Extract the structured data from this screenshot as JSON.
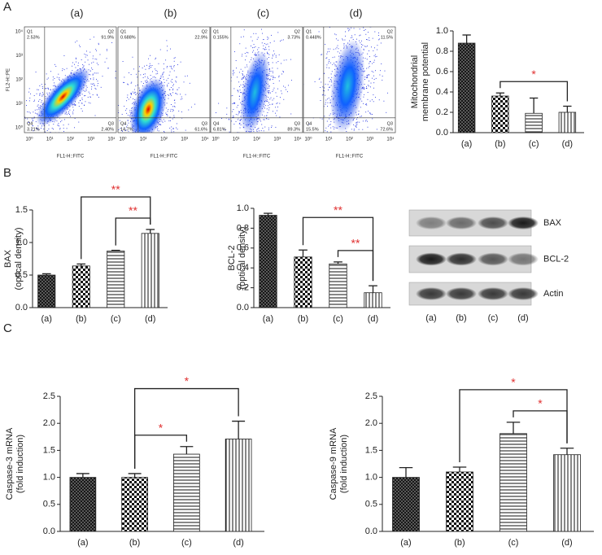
{
  "panels": [
    "A",
    "B",
    "C"
  ],
  "flow_cytometry": {
    "y_label": "FL2-H::PE",
    "x_label": "FL1-H::FITC",
    "ticks": [
      "10⁰",
      "10¹",
      "10²",
      "10³",
      "10⁴"
    ],
    "plots": [
      {
        "label": "(a)",
        "quadrants": [
          {
            "name": "Q1",
            "value": "2.53%"
          },
          {
            "name": "Q2",
            "value": "91.9%"
          },
          {
            "name": "Q4",
            "value": "3.21%"
          },
          {
            "name": "Q3",
            "value": "2.40%"
          }
        ]
      },
      {
        "label": "(b)",
        "quadrants": [
          {
            "name": "Q1",
            "value": "0.688%"
          },
          {
            "name": "Q2",
            "value": "22.9%"
          },
          {
            "name": "Q4",
            "value": "14.7%"
          },
          {
            "name": "Q3",
            "value": "61.6%"
          }
        ]
      },
      {
        "label": "(c)",
        "quadrants": [
          {
            "name": "Q1",
            "value": "0.155%"
          },
          {
            "name": "Q2",
            "value": "3.73%"
          },
          {
            "name": "Q4",
            "value": "6.81%"
          },
          {
            "name": "Q3",
            "value": "89.3%"
          }
        ]
      },
      {
        "label": "(d)",
        "quadrants": [
          {
            "name": "Q1",
            "value": "0.448%"
          },
          {
            "name": "Q2",
            "value": "11.5%"
          },
          {
            "name": "Q4",
            "value": "15.5%"
          },
          {
            "name": "Q3",
            "value": "72.6%"
          }
        ]
      }
    ]
  },
  "blot": {
    "bands": [
      "BAX",
      "BCL-2",
      "Actin"
    ],
    "lanes": [
      "(a)",
      "(b)",
      "(c)",
      "(d)"
    ]
  },
  "chart_data": [
    {
      "type": "bar",
      "ylabel": [
        "Mitochondrial",
        "membrane potential"
      ],
      "categories": [
        "(a)",
        "(b)",
        "(c)",
        "(d)"
      ],
      "values": [
        0.88,
        0.36,
        0.19,
        0.2
      ],
      "errors": [
        0.08,
        0.03,
        0.15,
        0.06
      ],
      "ylim": [
        0,
        1.0
      ],
      "yticks": [
        {
          "value": 0,
          "label": "0.0"
        },
        0.2,
        0.4,
        0.6,
        0.8,
        {
          "value": 1.0,
          "label": "1.0"
        }
      ],
      "significance": [
        {
          "between": [
            "(b)",
            "(d)"
          ],
          "label": "*"
        }
      ]
    },
    {
      "type": "bar",
      "ylabel": [
        "BAX",
        "(optical density)"
      ],
      "categories": [
        "(a)",
        "(b)",
        "(c)",
        "(d)"
      ],
      "values": [
        0.5,
        0.64,
        0.87,
        1.14
      ],
      "errors": [
        0.02,
        0.03,
        0.01,
        0.06
      ],
      "ylim": [
        0,
        1.5
      ],
      "yticks": [
        {
          "value": 0,
          "label": "0.0"
        },
        0.5,
        {
          "value": 1.0,
          "label": "1.0"
        },
        1.5
      ],
      "significance": [
        {
          "between": [
            "(c)",
            "(d)"
          ],
          "label": "**"
        },
        {
          "between": [
            "(b)",
            "(d)"
          ],
          "label": "**"
        }
      ]
    },
    {
      "type": "bar",
      "ylabel": [
        "BCL-2",
        "(optical density)"
      ],
      "categories": [
        "(a)",
        "(b)",
        "(c)",
        "(d)"
      ],
      "values": [
        0.93,
        0.51,
        0.44,
        0.15
      ],
      "errors": [
        0.02,
        0.07,
        0.02,
        0.07
      ],
      "ylim": [
        0,
        1.0
      ],
      "yticks": [
        {
          "value": 0,
          "label": "0.0"
        },
        0.2,
        0.4,
        0.6,
        0.8,
        {
          "value": 1.0,
          "label": "1.0"
        }
      ],
      "significance": [
        {
          "between": [
            "(c)",
            "(d)"
          ],
          "label": "**"
        },
        {
          "between": [
            "(b)",
            "(d)"
          ],
          "label": "**"
        }
      ]
    },
    {
      "type": "bar",
      "ylabel": [
        "Caspase-3 mRNA",
        "(fold induction)"
      ],
      "categories": [
        "(a)",
        "(b)",
        "(c)",
        "(d)"
      ],
      "values": [
        1.0,
        1.0,
        1.43,
        1.71
      ],
      "errors": [
        0.07,
        0.07,
        0.14,
        0.33
      ],
      "ylim": [
        0,
        2.5
      ],
      "yticks": [
        {
          "value": 0,
          "label": "0.0"
        },
        0.5,
        {
          "value": 1.0,
          "label": "1.0"
        },
        1.5,
        {
          "value": 2.0,
          "label": "2.0"
        },
        2.5
      ],
      "significance": [
        {
          "between": [
            "(b)",
            "(c)"
          ],
          "label": "*"
        },
        {
          "between": [
            "(b)",
            "(d)"
          ],
          "label": "*"
        }
      ]
    },
    {
      "type": "bar",
      "ylabel": [
        "Caspase-9 mRNA",
        "(fold induction)"
      ],
      "categories": [
        "(a)",
        "(b)",
        "(c)",
        "(d)"
      ],
      "values": [
        1.0,
        1.1,
        1.81,
        1.42
      ],
      "errors": [
        0.18,
        0.09,
        0.21,
        0.12
      ],
      "ylim": [
        0,
        2.5
      ],
      "yticks": [
        {
          "value": 0,
          "label": "0.0"
        },
        0.5,
        {
          "value": 1.0,
          "label": "1.0"
        },
        1.5,
        {
          "value": 2.0,
          "label": "2.0"
        },
        2.5
      ],
      "significance": [
        {
          "between": [
            "(c)",
            "(d)"
          ],
          "label": "*"
        },
        {
          "between": [
            "(b)",
            "(d)"
          ],
          "label": "*"
        }
      ]
    }
  ]
}
